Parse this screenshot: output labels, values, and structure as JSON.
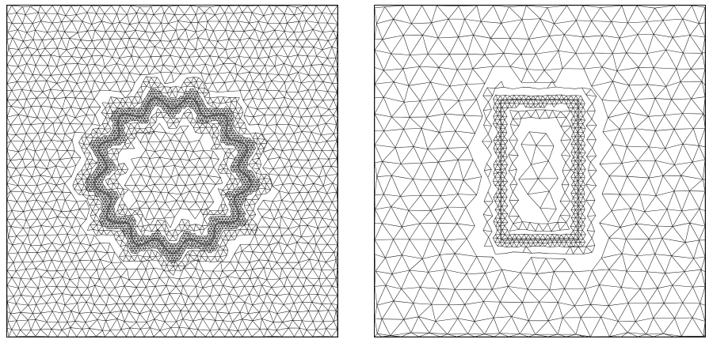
{
  "figure": {
    "panels": [
      {
        "id": "circular-inclusion-mesh",
        "kind": "adaptive triangular mesh",
        "refinement_feature": "circle",
        "refinement_edge": "wavy",
        "wave_lobes": 13,
        "line_color": "#1a1a1a",
        "dense_color": "#333333"
      },
      {
        "id": "rectangular-inclusion-mesh",
        "kind": "adaptive triangular mesh",
        "refinement_feature": "rectangle",
        "line_color": "#1a1a1a",
        "dense_color": "#333333"
      }
    ],
    "background_color": "#ffffff",
    "frame_color": "#111111"
  }
}
